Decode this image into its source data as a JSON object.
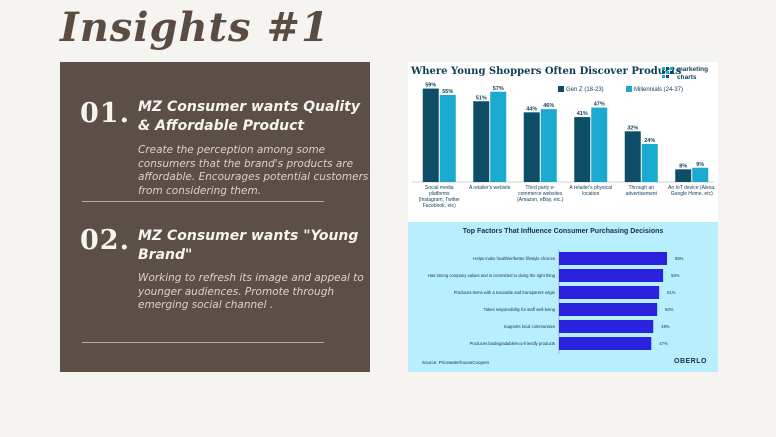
{
  "title": "Insights #1",
  "insights": [
    {
      "number": "01.",
      "heading": "MZ Consumer wants Quality & Affordable Product",
      "body": "Create the perception among some consumers that the brand's products are affordable. Encourages potential customers from considering them."
    },
    {
      "number": "02.",
      "heading": "MZ Consumer wants \"Young Brand\"",
      "body": "Working to refresh its image and appeal to younger audiences. Promote through emerging social channel ."
    }
  ],
  "marketing_charts": {
    "logo_text_line1": "marketing",
    "logo_text_line2": "charts",
    "colors": {
      "gen_z": "#0d4d66",
      "millennials": "#1aa9cf"
    }
  },
  "oberlo": {
    "source": "Source: PricewaterhouseCoopers",
    "logo": "OBERLO",
    "bar_color": "#2b22e0"
  },
  "chart_data": [
    {
      "type": "bar",
      "title": "Where Young Shoppers Often Discover Products",
      "categories": [
        "Social media platforms (Instagram, Twitter Facebook, etc)",
        "A retailer's website",
        "Third party e-commerce websites (Amazon, eBay, etc.)",
        "A retailer's physical location",
        "Through an advertisement",
        "An IoT device (Alexa, Google Home, etc)"
      ],
      "category_lines": [
        [
          "Social media",
          "platforms",
          "(Instagram, Twitter",
          "Facebook, etc)"
        ],
        [
          "A retailer's website"
        ],
        [
          "Third party e-",
          "commerce websites",
          "(Amazon, eBay, etc.)"
        ],
        [
          "A retailer's physical",
          "location"
        ],
        [
          "Through an",
          "advertisement"
        ],
        [
          "An IoT device (Alexa,",
          "Google Home, etc)"
        ]
      ],
      "series": [
        {
          "name": "Gen Z (18-23)",
          "values": [
            59,
            51,
            44,
            41,
            32,
            8
          ],
          "labels": [
            "59%",
            "51%",
            "44%",
            "41%",
            "32%",
            "8%"
          ]
        },
        {
          "name": "Millennials (24-37)",
          "values": [
            55,
            57,
            46,
            47,
            24,
            9
          ],
          "labels": [
            "55%",
            "57%",
            "46%",
            "47%",
            "24%",
            "9%"
          ]
        }
      ],
      "ylim": [
        0,
        60
      ],
      "legend": "top-right"
    },
    {
      "type": "bar",
      "orientation": "horizontal",
      "title": "Top Factors That Influence Consumer Purchasing Decisions",
      "categories": [
        "Helps make healthier/better lifestyle choices",
        "Has strong company values and is committed to doing the right thing",
        "Produces items with a traceable and transparent origin",
        "Takes responsibility for staff well-being",
        "Supports local communities",
        "Produces biodegradable/eco-friendly products"
      ],
      "values": [
        55,
        53,
        51,
        50,
        48,
        47
      ],
      "labels": [
        "55%",
        "53%",
        "51%",
        "50%",
        "48%",
        "47%"
      ],
      "xlim": [
        0,
        55
      ]
    }
  ]
}
